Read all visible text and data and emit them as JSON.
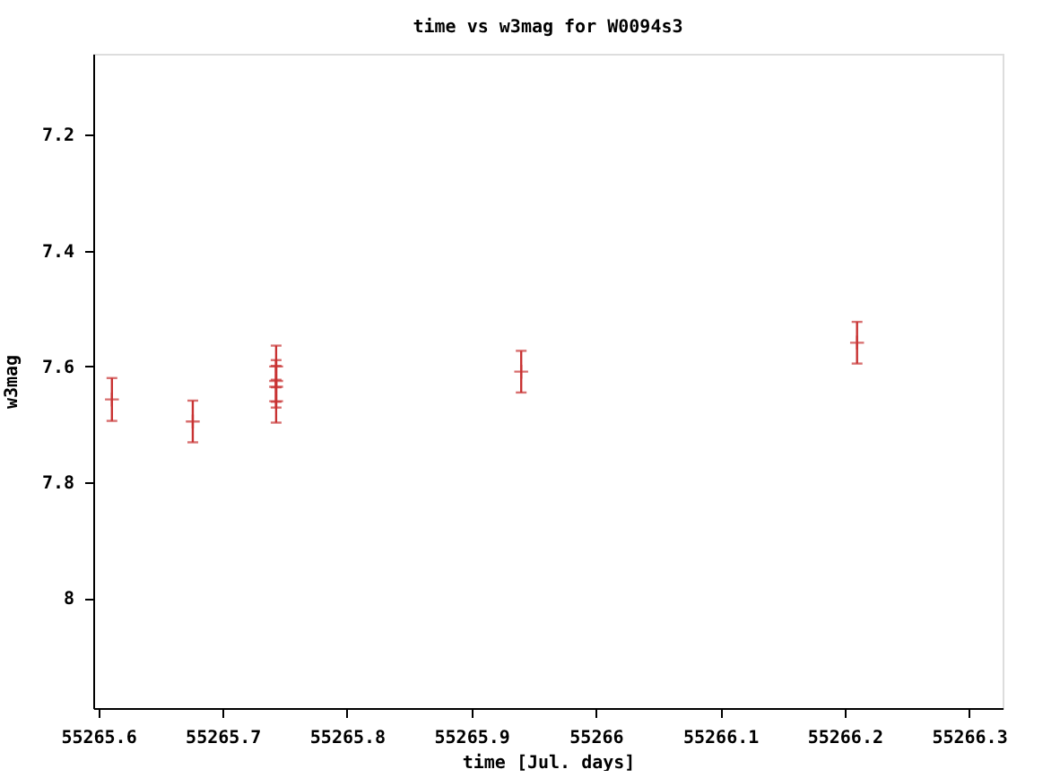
{
  "chart_data": {
    "type": "scatter",
    "title": "time vs w3mag for W0094s3",
    "xlabel": "time [Jul. days]",
    "ylabel": "w3mag",
    "x": [
      55265.611,
      55265.676,
      55265.743,
      55265.743,
      55265.743,
      55265.743,
      55265.94,
      55266.21
    ],
    "series": [
      {
        "color": "#c83232",
        "values": [
          7.657,
          7.695,
          7.6,
          7.625,
          7.635,
          7.66,
          7.609,
          7.559
        ],
        "errors": [
          0.037,
          0.036,
          0.036,
          0.036,
          0.036,
          0.037,
          0.036,
          0.036
        ]
      }
    ],
    "xlim": [
      55265.596,
      55266.327
    ],
    "ylim": [
      8.19,
      7.06
    ],
    "xticks": [
      55265.6,
      55265.7,
      55265.8,
      55265.9,
      55266,
      55266.1,
      55266.2,
      55266.3
    ],
    "yticks": [
      7.2,
      7.4,
      7.6,
      7.8,
      8
    ],
    "marker": "cross",
    "grid": false
  }
}
